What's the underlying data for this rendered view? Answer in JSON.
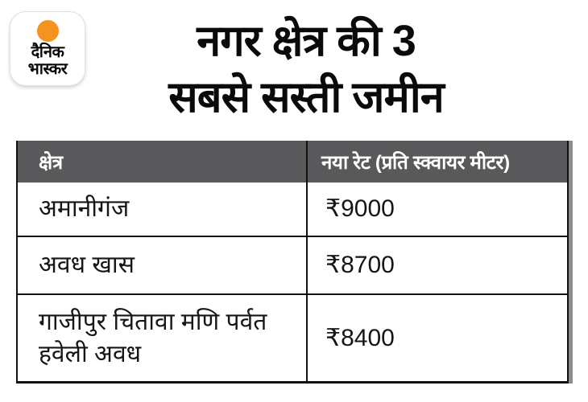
{
  "logo": {
    "name": "Dainik Bhaskar",
    "line1": "दैनिक",
    "line2": "भास्कर",
    "dot_color": "#F6921E"
  },
  "title": {
    "line1": "नगर क्षेत्र की 3",
    "line2": "सबसे सस्ती जमीन"
  },
  "table": {
    "header_bg": "#59595b",
    "header_text_color": "#ffffff",
    "border_color": "#111111",
    "headers": {
      "area": "क्षेत्र",
      "rate": "नया रेट (प्रति स्क्वायर मीटर)"
    },
    "rows": [
      {
        "area": "अमानीगंज",
        "rate": "₹9000"
      },
      {
        "area": "अवध खास",
        "rate": "₹8700"
      },
      {
        "area": "गाजीपुर चितावा मणि पर्वत हवेली अवध",
        "rate": "₹8400"
      }
    ]
  },
  "chart_data": {
    "type": "table",
    "title": "नगर क्षेत्र की 3 सबसे सस्ती जमीन",
    "columns": [
      "क्षेत्र",
      "नया रेट (प्रति स्क्वायर मीटर)"
    ],
    "rows": [
      [
        "अमानीगंज",
        "₹9000"
      ],
      [
        "अवध खास",
        "₹8700"
      ],
      [
        "गाजीपुर चितावा मणि पर्वत हवेली अवध",
        "₹8400"
      ]
    ],
    "values_numeric": [
      9000,
      8700,
      8400
    ],
    "currency_symbol": "₹",
    "unit": "प्रति स्क्वायर मीटर"
  }
}
